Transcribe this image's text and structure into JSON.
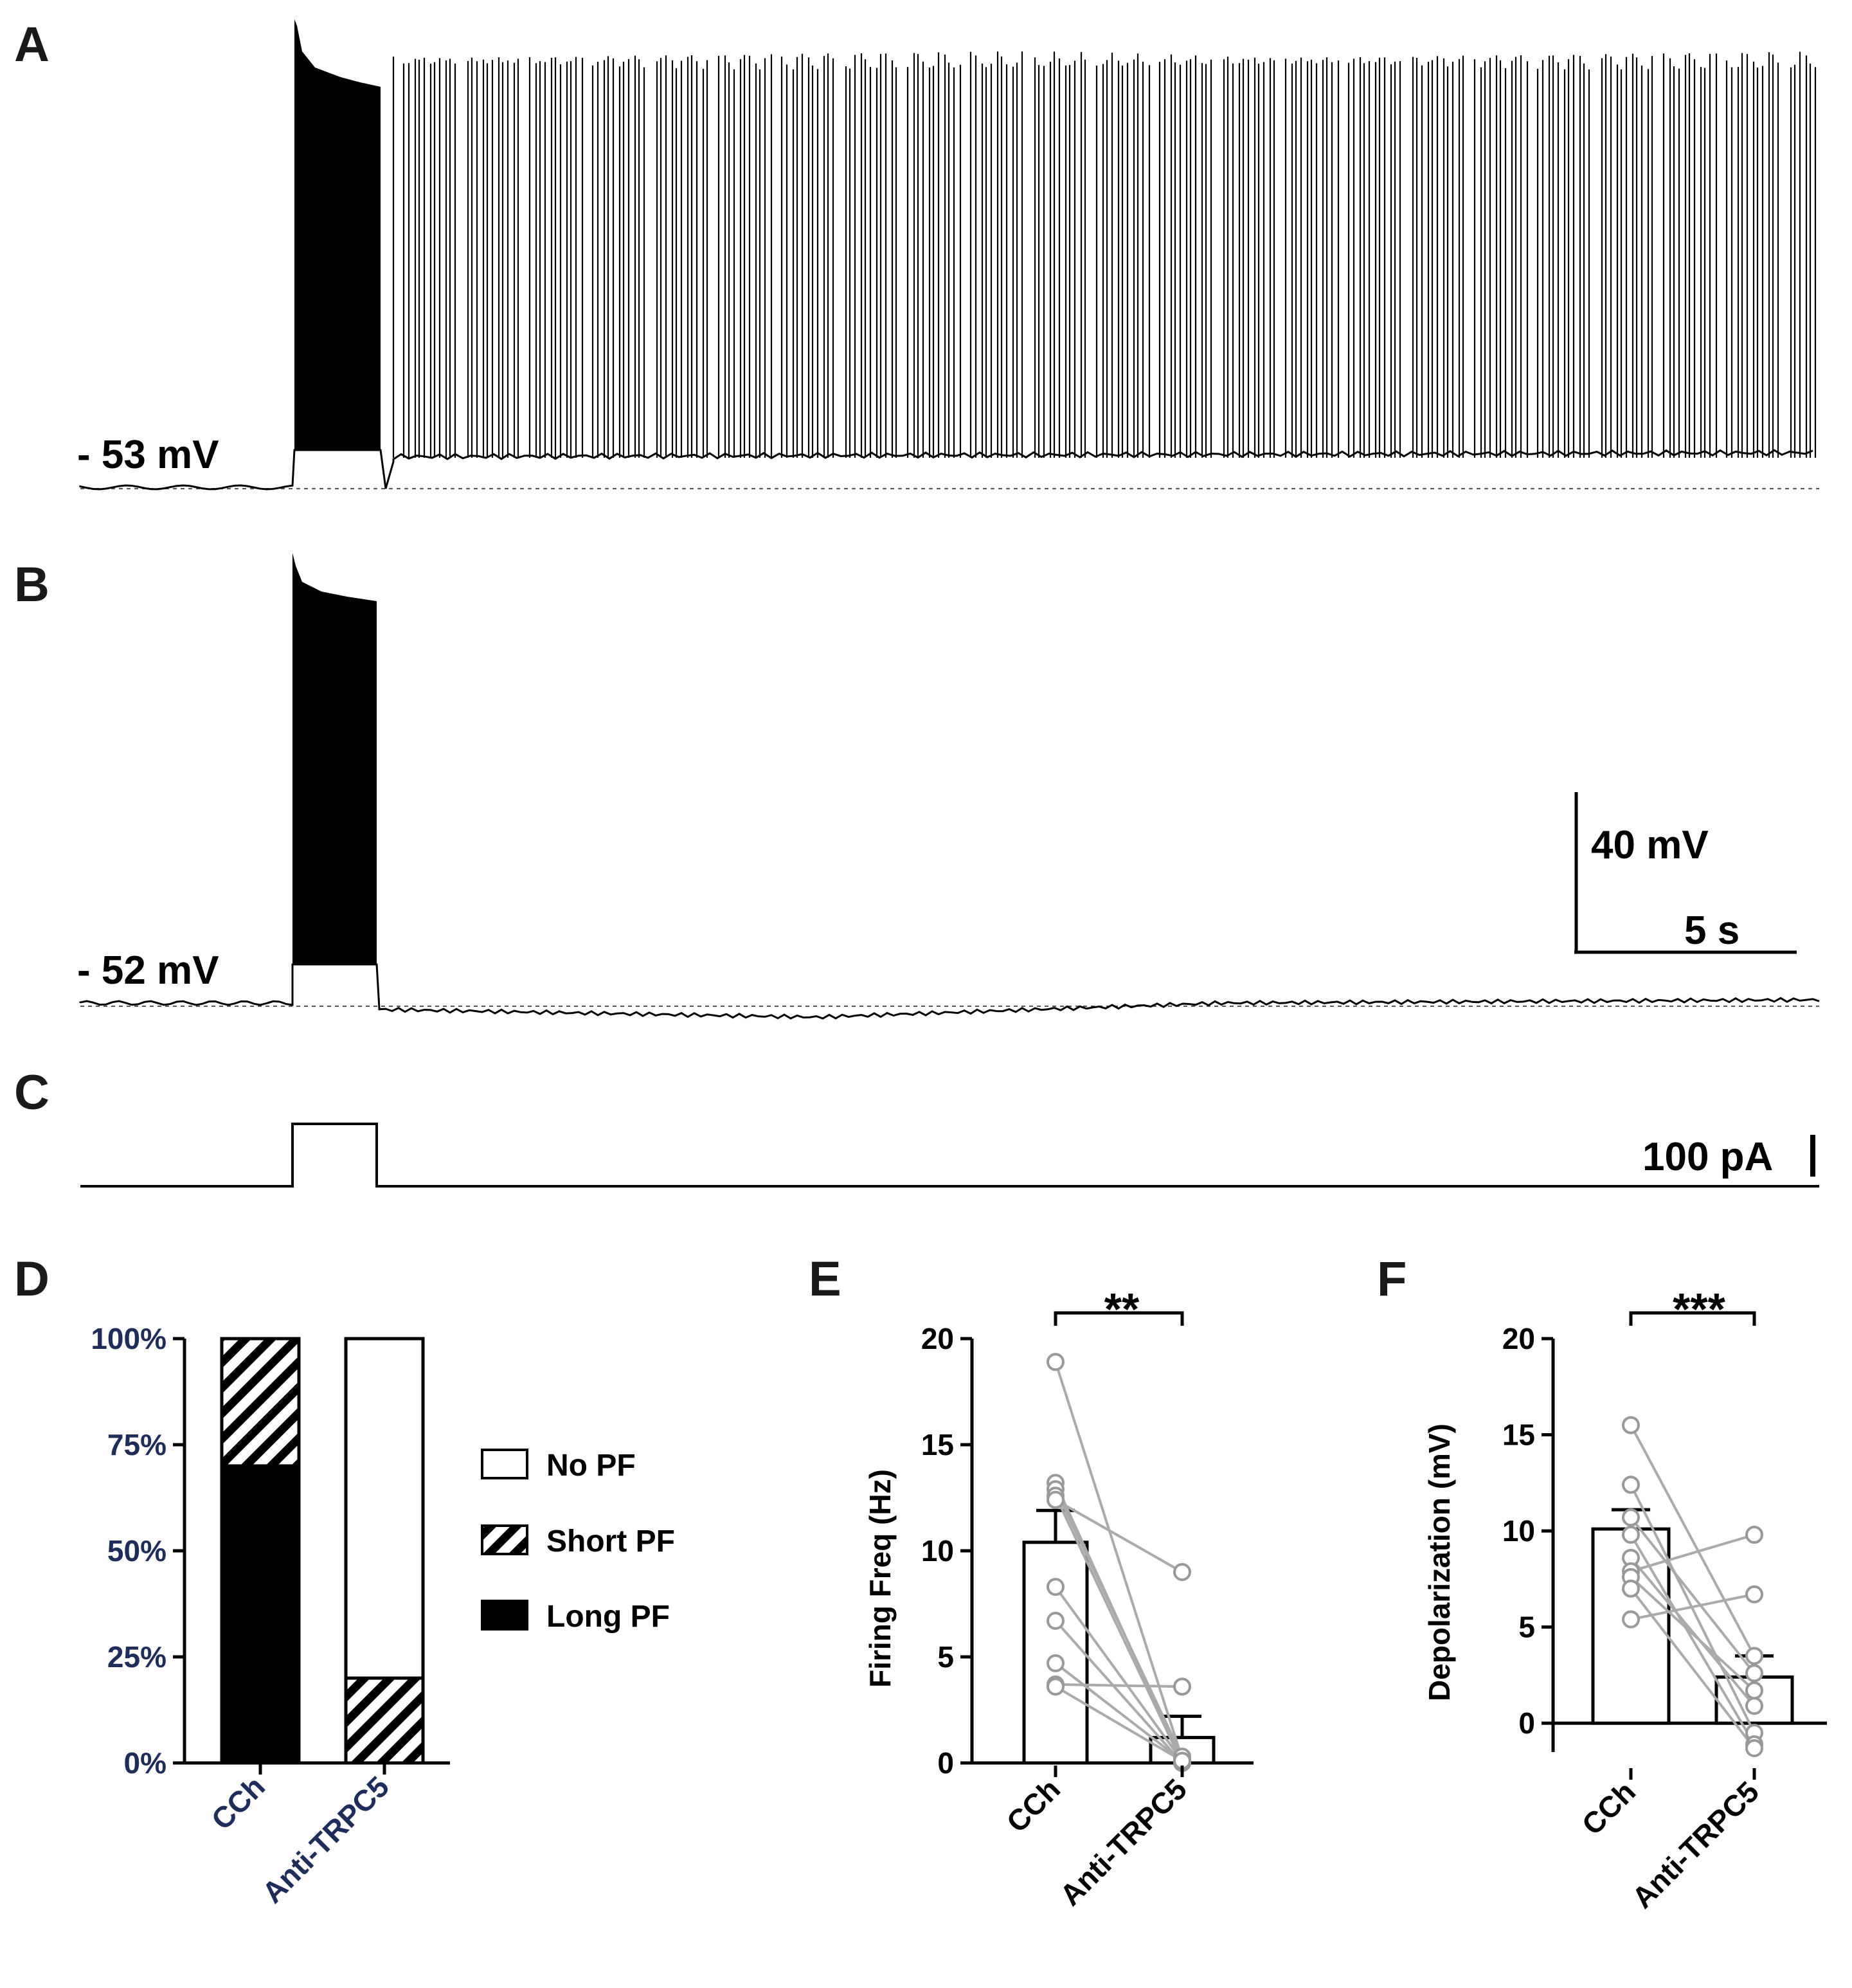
{
  "panels": {
    "A": {
      "label": "A",
      "baseline_label": "- 53 mV"
    },
    "B": {
      "label": "B",
      "baseline_label": "- 52 mV"
    },
    "C": {
      "label": "C",
      "current_scale_label": "100 pA"
    }
  },
  "scale_bar": {
    "voltage_label": "40 mV",
    "time_label": "5 s"
  },
  "chart_data": [
    {
      "panel": "D",
      "type": "bar",
      "stacked": true,
      "categories": [
        "CCh",
        "Anti-TRPC5"
      ],
      "series": [
        {
          "name": "Long PF",
          "values": [
            70,
            0
          ],
          "pattern": "solid-black"
        },
        {
          "name": "Short PF",
          "values": [
            30,
            20
          ],
          "pattern": "hatched"
        },
        {
          "name": "No PF",
          "values": [
            0,
            80
          ],
          "pattern": "white"
        }
      ],
      "yticks": [
        "0%",
        "25%",
        "50%",
        "75%",
        "100%"
      ],
      "ylim": [
        0,
        100
      ],
      "legend": [
        "No PF",
        "Short PF",
        "Long PF"
      ]
    },
    {
      "panel": "E",
      "type": "bar",
      "categories": [
        "CCh",
        "Anti-TRPC5"
      ],
      "means": [
        10.4,
        1.2
      ],
      "errors": [
        1.5,
        1.0
      ],
      "paired": [
        [
          18.9,
          0.2
        ],
        [
          13.2,
          0.1
        ],
        [
          12.9,
          0.3
        ],
        [
          12.6,
          0.0
        ],
        [
          8.3,
          0.1
        ],
        [
          6.7,
          0.0
        ],
        [
          4.7,
          0.1
        ],
        [
          3.7,
          3.6
        ],
        [
          3.6,
          0.1
        ],
        [
          12.4,
          9.0
        ]
      ],
      "ylabel": "Firing Freq (Hz)",
      "yticks": [
        "0",
        "5",
        "10",
        "15",
        "20"
      ],
      "ylim": [
        0,
        20
      ],
      "significance": "**"
    },
    {
      "panel": "F",
      "type": "bar",
      "categories": [
        "CCh",
        "Anti-TRPC5"
      ],
      "means": [
        10.1,
        2.4
      ],
      "errors": [
        1.0,
        1.1
      ],
      "paired": [
        [
          15.5,
          3.5
        ],
        [
          12.4,
          -0.5
        ],
        [
          10.7,
          2.6
        ],
        [
          9.8,
          -1.1
        ],
        [
          8.6,
          0.9
        ],
        [
          7.9,
          9.8
        ],
        [
          7.6,
          1.7
        ],
        [
          5.4,
          6.7
        ],
        [
          7.0,
          -1.3
        ]
      ],
      "ylabel": "Depolarization (mV)",
      "yticks": [
        "0",
        "5",
        "10",
        "15",
        "20"
      ],
      "ylim": [
        -2,
        20
      ],
      "significance": "***"
    }
  ]
}
